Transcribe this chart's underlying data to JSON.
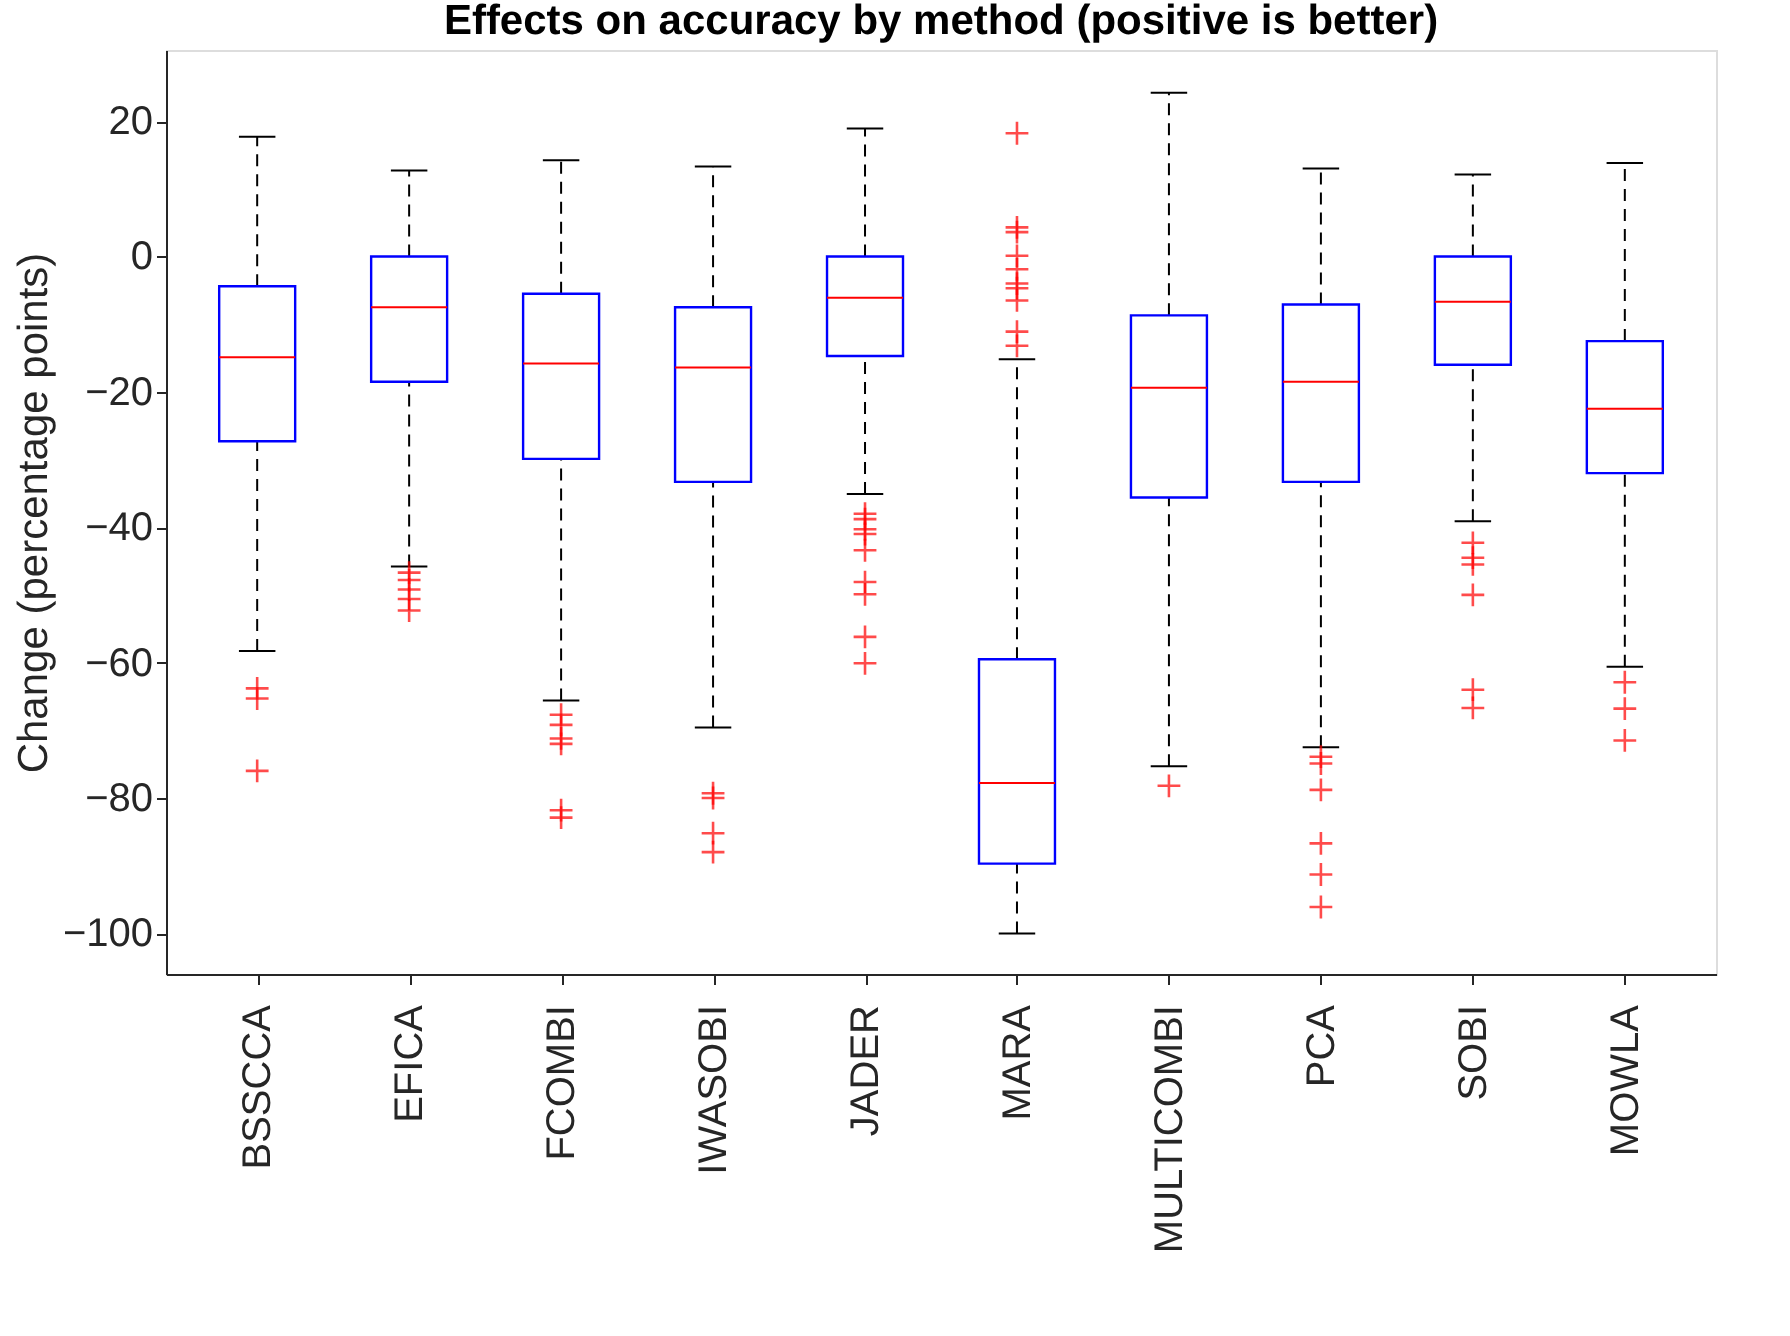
{
  "chart_data": {
    "type": "box",
    "title": "Effects on accuracy by method (positive is better)",
    "ylabel": "Change (percentage points)",
    "categories": [
      "BSSCCA",
      "EFICA",
      "FCOMBI",
      "IWASOBI",
      "JADER",
      "MARA",
      "MULTICOMBI",
      "PCA",
      "SOBI",
      "MOWLA"
    ],
    "ylim": [
      -106,
      30.5
    ],
    "yticks": [
      -100,
      -80,
      -60,
      -40,
      -20,
      0,
      20
    ],
    "grid": false,
    "marker": "cross",
    "series": [
      {
        "color": "#0000ff",
        "boxes": [
          {
            "low": -58.3,
            "q1": -27.3,
            "median": -14.9,
            "q3": -4.4,
            "high": 17.7,
            "outliers": [
              -63.8,
              -65.3,
              -76
            ]
          },
          {
            "low": -45.8,
            "q1": -18.5,
            "median": -7.5,
            "q3": 0,
            "high": 12.7,
            "outliers": [
              -46.7,
              -47.8,
              -49.2,
              -50.6,
              -52.3
            ]
          },
          {
            "low": -65.6,
            "q1": -29.9,
            "median": -15.8,
            "q3": -5.5,
            "high": 14.2,
            "outliers": [
              -67.7,
              -69.2,
              -71.2,
              -72,
              -81.8,
              -82.9
            ]
          },
          {
            "low": -69.6,
            "q1": -33.3,
            "median": -16.4,
            "q3": -7.5,
            "high": 13.3,
            "outliers": [
              -79.3,
              -80,
              -85.2,
              -88
            ]
          },
          {
            "low": -35.1,
            "q1": -14.7,
            "median": -6.1,
            "q3": 0,
            "high": 18.9,
            "outliers": [
              -38,
              -38.8,
              -40.3,
              -41,
              -43.4,
              -48.1,
              -49.9,
              -56.2,
              -60.1
            ]
          },
          {
            "low": -100,
            "q1": -89.7,
            "median": -77.8,
            "q3": -59.5,
            "high": -15.2,
            "outliers": [
              18.2,
              4.3,
              3.6,
              0.1,
              -1.9,
              -4,
              -4.7,
              -6.5,
              -11.1,
              -13.2
            ]
          },
          {
            "low": -75.3,
            "q1": -35.6,
            "median": -19.4,
            "q3": -8.7,
            "high": 24.2,
            "outliers": [
              -78.2
            ]
          },
          {
            "low": -72.5,
            "q1": -33.3,
            "median": -18.5,
            "q3": -7.1,
            "high": 13,
            "outliers": [
              -73.9,
              -74.9,
              -78.8,
              -86.7,
              -91.3,
              -96.1
            ]
          },
          {
            "low": -39.1,
            "q1": -16,
            "median": -6.7,
            "q3": 0,
            "high": 12.1,
            "outliers": [
              -42.3,
              -44.5,
              -45.5,
              -50,
              -64,
              -66.7
            ]
          },
          {
            "low": -60.6,
            "q1": -32,
            "median": -22.5,
            "q3": -12.5,
            "high": 13.8,
            "outliers": [
              -62.9,
              -66.8,
              -71.5
            ]
          }
        ]
      }
    ]
  }
}
